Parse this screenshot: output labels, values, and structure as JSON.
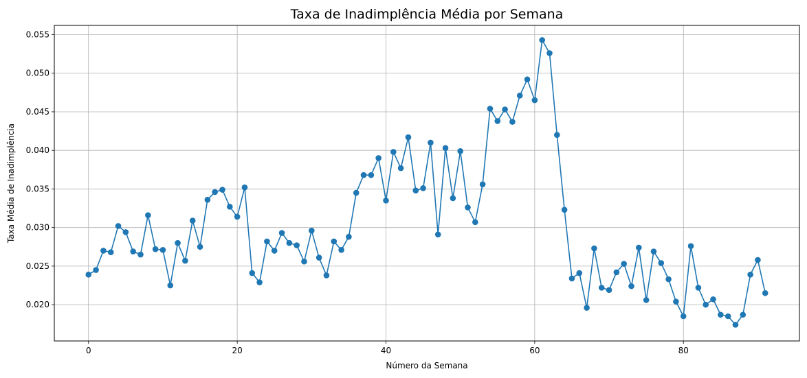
{
  "chart_data": {
    "type": "line",
    "title": "Taxa de Inadimplência Média por Semana",
    "xlabel": "Número da Semana",
    "ylabel": "Taxa Média de Inadimplência",
    "xlim": [
      -4.6,
      95.6
    ],
    "ylim": [
      0.0153,
      0.0562
    ],
    "xticks": [
      0,
      20,
      40,
      60,
      80
    ],
    "xtick_labels": [
      "0",
      "20",
      "40",
      "60",
      "80"
    ],
    "yticks": [
      0.02,
      0.025,
      0.03,
      0.035,
      0.04,
      0.045,
      0.05,
      0.055
    ],
    "ytick_labels": [
      "0.020",
      "0.025",
      "0.030",
      "0.035",
      "0.040",
      "0.045",
      "0.050",
      "0.055"
    ],
    "grid": true,
    "marker": "circle",
    "color": "#1f77b4",
    "series": [
      {
        "x": [
          0,
          1,
          2,
          3,
          4,
          5,
          6,
          7,
          8,
          9,
          10,
          11,
          12,
          13,
          14,
          15,
          16,
          17,
          18,
          19,
          20,
          21,
          22,
          23,
          24,
          25,
          26,
          27,
          28,
          29,
          30,
          31,
          32,
          33,
          34,
          35,
          36,
          37,
          38,
          39,
          40,
          41,
          42,
          43,
          44,
          45,
          46,
          47,
          48,
          49,
          50,
          51,
          52,
          53,
          54,
          55,
          56,
          57,
          58,
          59,
          60,
          61,
          62,
          63,
          64,
          65,
          66,
          67,
          68,
          69,
          70,
          71,
          72,
          73,
          74,
          75,
          76,
          77,
          78,
          79,
          80,
          81,
          82,
          83,
          84,
          85,
          86,
          87,
          88,
          89,
          90,
          91
        ],
        "values": [
          0.0239,
          0.0245,
          0.027,
          0.0268,
          0.0302,
          0.0294,
          0.0269,
          0.0265,
          0.0316,
          0.0272,
          0.0271,
          0.0225,
          0.028,
          0.0257,
          0.0309,
          0.0275,
          0.0336,
          0.0346,
          0.0349,
          0.0327,
          0.0314,
          0.0352,
          0.0241,
          0.0229,
          0.0282,
          0.027,
          0.0293,
          0.028,
          0.0277,
          0.0256,
          0.0296,
          0.0261,
          0.0238,
          0.0282,
          0.0271,
          0.0288,
          0.0345,
          0.0368,
          0.0368,
          0.039,
          0.0335,
          0.0398,
          0.0377,
          0.0417,
          0.0348,
          0.0351,
          0.041,
          0.0291,
          0.0403,
          0.0338,
          0.0399,
          0.0326,
          0.0307,
          0.0356,
          0.0454,
          0.0438,
          0.0453,
          0.0437,
          0.0471,
          0.0492,
          0.0465,
          0.0543,
          0.0526,
          0.042,
          0.0323,
          0.0234,
          0.0241,
          0.0196,
          0.0273,
          0.0222,
          0.0219,
          0.0242,
          0.0253,
          0.0224,
          0.0274,
          0.0206,
          0.0269,
          0.0254,
          0.0233,
          0.0204,
          0.0185,
          0.0276,
          0.0222,
          0.02,
          0.0207,
          0.0187,
          0.0185,
          0.0174,
          0.0187,
          0.0239,
          0.0258,
          0.0215
        ]
      }
    ]
  }
}
